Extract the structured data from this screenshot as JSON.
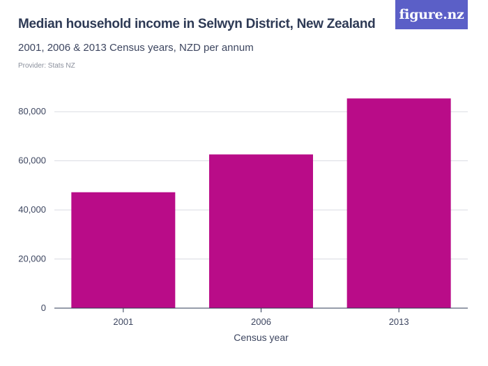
{
  "header": {
    "title": "Median household income in Selwyn District, New Zealand",
    "subtitle": "2001, 2006 & 2013 Census years, NZD per annum",
    "provider": "Provider: Stats NZ"
  },
  "logo": {
    "text": "figure.nz",
    "background": "#5b5fc7"
  },
  "colors": {
    "bar": "#b90c88",
    "grid": "#d9dbe2",
    "axis": "#2e3a55"
  },
  "chart_data": {
    "type": "bar",
    "title": "Median household income in Selwyn District, New Zealand",
    "subtitle": "2001, 2006 & 2013 Census years, NZD per annum",
    "categories": [
      "2001",
      "2006",
      "2013"
    ],
    "values": [
      47200,
      62600,
      85400
    ],
    "xlabel": "Census year",
    "ylabel": "",
    "ylim": [
      0,
      90000
    ],
    "yticks": [
      0,
      20000,
      40000,
      60000,
      80000
    ],
    "ytick_labels": [
      "0",
      "20,000",
      "40,000",
      "60,000",
      "80,000"
    ],
    "grid": true,
    "legend": "none"
  }
}
